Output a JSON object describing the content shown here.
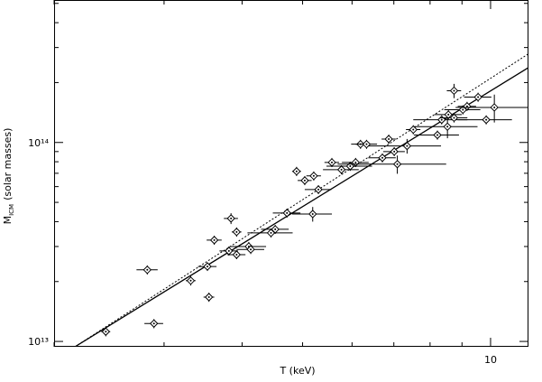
{
  "chart_data": {
    "type": "scatter",
    "xlabel": "T (keV)",
    "ylabel": {
      "symbol": "M",
      "subscript": "ICM",
      "text": "(solar masses)"
    },
    "log_x": true,
    "log_y": true,
    "xlim": [
      2,
      11.5
    ],
    "ylim": [
      9400000000000.0,
      520000000000000.0
    ],
    "xticks": [
      10
    ],
    "xminorticks": [
      2,
      3,
      4,
      5,
      6,
      7,
      8,
      9
    ],
    "yticks": [
      {
        "value": 10000000000000.0,
        "label": "10¹³"
      },
      {
        "value": 100000000000000.0,
        "label": "10¹⁴"
      }
    ],
    "yminorticks": [
      20000000000000.0,
      30000000000000.0,
      40000000000000.0,
      50000000000000.0,
      60000000000000.0,
      70000000000000.0,
      80000000000000.0,
      90000000000000.0,
      200000000000000.0,
      300000000000000.0,
      400000000000000.0,
      500000000000000.0
    ],
    "color": "#000000",
    "x": [
      2.42,
      2.82,
      2.89,
      3.31,
      3.52,
      3.54,
      3.61,
      3.81,
      3.84,
      3.92,
      3.92,
      4.1,
      4.13,
      4.45,
      4.52,
      4.72,
      4.89,
      5.04,
      5.21,
      5.3,
      5.19,
      5.57,
      5.77,
      5.96,
      6.08,
      6.19,
      6.33,
      6.71,
      6.87,
      7.01,
      7.09,
      7.35,
      7.52,
      8.22,
      8.35,
      8.53,
      8.56,
      8.74,
      8.74,
      9.03,
      9.17,
      9.55,
      9.84,
      10.14
    ],
    "values": [
      11200000000000.0,
      22900000000000.0,
      12300000000000.0,
      20200000000000.0,
      23800000000000.0,
      16700000000000.0,
      32300000000000.0,
      28500000000000.0,
      41500000000000.0,
      35500000000000.0,
      27300000000000.0,
      30000000000000.0,
      29000000000000.0,
      35100000000000.0,
      36600000000000.0,
      44200000000000.0,
      71600000000000.0,
      64400000000000.0,
      67900000000000.0,
      58000000000000.0,
      43700000000000.0,
      79400000000000.0,
      73000000000000.0,
      76000000000000.0,
      79400000000000.0,
      98000000000000.0,
      98000000000000.0,
      83700000000000.0,
      104000000000000.0,
      90000000000000.0,
      77800000000000.0,
      96000000000000.0,
      116000000000000.0,
      109000000000000.0,
      130000000000000.0,
      120000000000000.0,
      138000000000000.0,
      182000000000000.0,
      133000000000000.0,
      146000000000000.0,
      152000000000000.0,
      169000000000000.0,
      130000000000000.0,
      150000000000000.0
    ],
    "xerr": [
      0.04,
      0.11,
      0.1,
      0.06,
      0.12,
      0.07,
      0.1,
      0.13,
      0.1,
      0.07,
      0.13,
      0.27,
      0.21,
      0.37,
      0.23,
      0.24,
      0.08,
      0.13,
      0.14,
      0.26,
      0.38,
      0.15,
      0.38,
      0.5,
      0.3,
      0.21,
      0.25,
      0.34,
      0.18,
      0.28,
      1.4,
      0.98,
      0.2,
      0.68,
      0.83,
      1.0,
      0.43,
      0.23,
      0.44,
      0.6,
      0.31,
      0.48,
      0.98,
      1.35
    ],
    "yerr": [
      590000000000.0,
      1200000000000.0,
      650000000000.0,
      1100000000000.0,
      1200000000000.0,
      880000000000.0,
      1700000000000.0,
      1500000000000.0,
      2600000000000.0,
      1900000000000.0,
      1400000000000.0,
      1600000000000.0,
      1500000000000.0,
      1800000000000.0,
      1900000000000.0,
      2300000000000.0,
      3800000000000.0,
      3400000000000.0,
      3600000000000.0,
      3000000000000.0,
      3700000000000.0,
      4200000000000.0,
      3800000000000.0,
      4000000000000.0,
      4200000000000.0,
      5100000000000.0,
      5100000000000.0,
      4400000000000.0,
      5500000000000.0,
      4700000000000.0,
      8200000000000.0,
      8100000000000.0,
      6100000000000.0,
      5700000000000.0,
      6800000000000.0,
      15000000000000.0,
      7200000000000.0,
      15000000000000.0,
      7000000000000.0,
      7700000000000.0,
      8000000000000.0,
      8900000000000.0,
      6800000000000.0,
      24000000000000.0
    ],
    "fits": [
      {
        "style": "solid",
        "x": [
          2.16,
          11.5
        ],
        "values": [
          9400000000000.0,
          238000000000000.0
        ]
      },
      {
        "style": "dotted",
        "x": [
          2.16,
          11.5
        ],
        "values": [
          9400000000000.0,
          279000000000000.0
        ]
      }
    ]
  }
}
